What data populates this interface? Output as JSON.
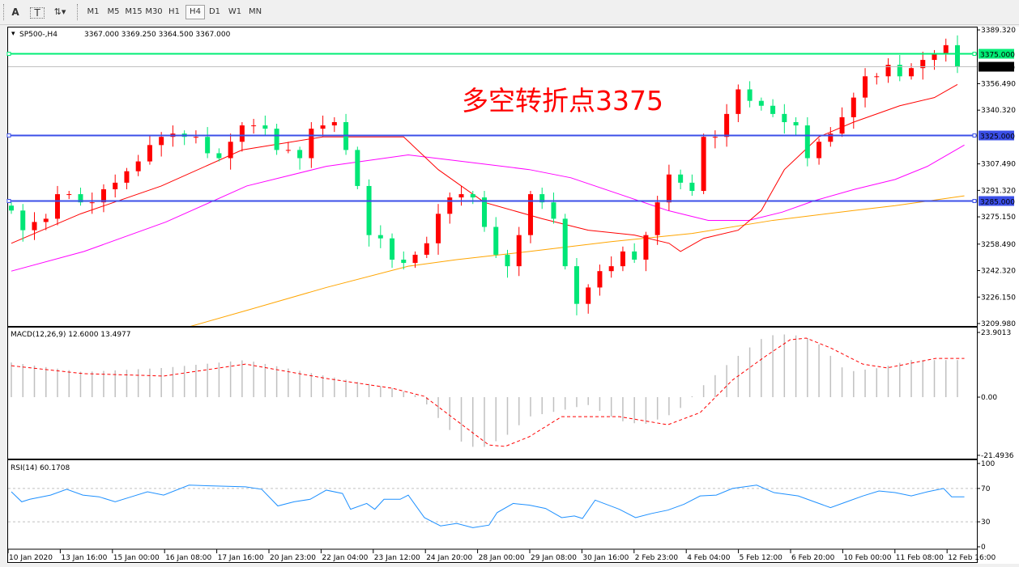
{
  "toolbar": {
    "icons": [
      "text-a-icon",
      "text-label-icon",
      "arrows-icon"
    ],
    "timeframes": [
      "M1",
      "M5",
      "M15",
      "M30",
      "H1",
      "H4",
      "D1",
      "W1",
      "MN"
    ],
    "active_timeframe": "H4"
  },
  "chart_header": {
    "symbol": "SP500-,H4",
    "ohlc": "3367.000 3369.250 3364.500 3367.000"
  },
  "annotation": {
    "text": "多空转折点3375",
    "color": "#ff0000"
  },
  "colors": {
    "bull": "#ff0000",
    "bear": "#00e676",
    "ma_fast": "#ff0000",
    "ma_mid": "#ff00ff",
    "ma_slow": "#ffa500",
    "level_green": "#00ee76",
    "level_blue": "#3b4fe8",
    "rsi": "#1e90ff",
    "macd_hist": "#c0c0c0",
    "macd_signal": "#ff0000"
  },
  "chart_data": [
    {
      "type": "candlestick",
      "title": "SP500-,H4",
      "ylim": [
        3209.98,
        3389.32
      ],
      "y_ticks": [
        "3389.320",
        "3356.490",
        "3340.320",
        "3307.490",
        "3291.320",
        "3275.150",
        "3258.490",
        "3242.320",
        "3226.150",
        "3209.980"
      ],
      "closes": [
        3279,
        3267,
        3272,
        3274,
        3289,
        3289,
        3284,
        3284,
        3292,
        3296,
        3303,
        3309,
        3319,
        3324,
        3326,
        3324,
        3324,
        3314,
        3311,
        3321,
        3331,
        3331,
        3329,
        3316,
        3316,
        3311,
        3329,
        3331,
        3333,
        3316,
        3294,
        3264,
        3262,
        3249,
        3247,
        3252,
        3259,
        3277,
        3287,
        3289,
        3287,
        3269,
        3252,
        3245,
        3264,
        3289,
        3284,
        3274,
        3245,
        3222,
        3232,
        3242,
        3245,
        3254,
        3249,
        3264,
        3284,
        3301,
        3296,
        3291,
        3324,
        3324,
        3338,
        3353,
        3346,
        3343,
        3338,
        3333,
        3331,
        3311,
        3321,
        3326,
        3336,
        3348,
        3361,
        3361,
        3368,
        3361,
        3366,
        3371,
        3375,
        3380,
        3367
      ],
      "ma_fast": [
        [
          0,
          3259
        ],
        [
          6,
          3277
        ],
        [
          13,
          3294
        ],
        [
          20,
          3316
        ],
        [
          27,
          3324
        ],
        [
          34,
          3324
        ],
        [
          37,
          3304
        ],
        [
          41,
          3284
        ],
        [
          46,
          3274
        ],
        [
          50,
          3267
        ],
        [
          54,
          3264
        ],
        [
          57,
          3259
        ],
        [
          58,
          3254
        ],
        [
          60,
          3262
        ],
        [
          63,
          3267
        ],
        [
          65,
          3279
        ],
        [
          67,
          3304
        ],
        [
          70,
          3324
        ],
        [
          73,
          3333
        ],
        [
          77,
          3343
        ],
        [
          80,
          3348
        ],
        [
          82,
          3356
        ]
      ],
      "ma_mid": [
        [
          0,
          3242
        ],
        [
          6.3,
          3254
        ],
        [
          13.4,
          3272
        ],
        [
          20.4,
          3294
        ],
        [
          27.3,
          3306
        ],
        [
          34.4,
          3313
        ],
        [
          37.9,
          3310
        ],
        [
          44.9,
          3304
        ],
        [
          48.5,
          3299
        ],
        [
          52.7,
          3289
        ],
        [
          56.9,
          3279
        ],
        [
          60.4,
          3273
        ],
        [
          63.9,
          3273
        ],
        [
          66.8,
          3278
        ],
        [
          69.6,
          3285
        ],
        [
          73.1,
          3292
        ],
        [
          76.6,
          3298
        ],
        [
          79.4,
          3306
        ],
        [
          82.6,
          3319
        ]
      ],
      "ma_slow": [
        [
          15.4,
          3208
        ],
        [
          20.4,
          3218
        ],
        [
          27.3,
          3232
        ],
        [
          34.4,
          3245
        ],
        [
          38.6,
          3249
        ],
        [
          44.9,
          3254
        ],
        [
          52,
          3260
        ],
        [
          59,
          3265
        ],
        [
          66,
          3273
        ],
        [
          73,
          3279
        ],
        [
          76.6,
          3282
        ],
        [
          82.6,
          3288
        ]
      ],
      "levels": [
        {
          "value": 3375,
          "label": "3375.000",
          "color": "#00ee76"
        },
        {
          "value": 3325,
          "label": "3325.000",
          "color": "#3b4fe8"
        },
        {
          "value": 3285,
          "label": "3285.000",
          "color": "#3b4fe8"
        }
      ],
      "current_price": {
        "value": 3367,
        "label": "3367.000"
      }
    },
    {
      "type": "bar+line",
      "title": "MACD(12,26,9) 12.6000 13.4977",
      "ylim": [
        -21.4936,
        23.9013
      ],
      "y_ticks": [
        "23.9013",
        "0.00",
        "-21.4936"
      ],
      "histogram": [
        [
          0,
          12.8
        ],
        [
          6.2,
          9.3
        ],
        [
          13.2,
          10.8
        ],
        [
          20.3,
          13.7
        ],
        [
          27.3,
          7.8
        ],
        [
          33,
          3.3
        ],
        [
          35.4,
          0.3
        ],
        [
          37.2,
          -8.7
        ],
        [
          39.3,
          -17.7
        ],
        [
          40.7,
          -19
        ],
        [
          42.8,
          -14.6
        ],
        [
          44.9,
          -7.2
        ],
        [
          48.5,
          -4.2
        ],
        [
          49.9,
          -2.7
        ],
        [
          52.7,
          -8.7
        ],
        [
          54.8,
          -10.2
        ],
        [
          57.6,
          -5.7
        ],
        [
          59.7,
          3.3
        ],
        [
          62.5,
          13.7
        ],
        [
          65.4,
          22.7
        ],
        [
          67.5,
          23.3
        ],
        [
          69.6,
          21.2
        ],
        [
          72.4,
          9.3
        ],
        [
          75.2,
          10.8
        ],
        [
          78,
          13.7
        ],
        [
          82.6,
          13.7
        ]
      ],
      "signal": [
        [
          0,
          11.6
        ],
        [
          6.2,
          8.7
        ],
        [
          13.2,
          7.8
        ],
        [
          20.3,
          12.2
        ],
        [
          27.3,
          6.9
        ],
        [
          33,
          3.3
        ],
        [
          35.8,
          0.3
        ],
        [
          38.6,
          -8.7
        ],
        [
          41.4,
          -17.7
        ],
        [
          42.8,
          -18.2
        ],
        [
          44.9,
          -14.6
        ],
        [
          47.7,
          -7.2
        ],
        [
          52.7,
          -7.2
        ],
        [
          56.9,
          -10.2
        ],
        [
          59.7,
          -5.7
        ],
        [
          62.5,
          6.3
        ],
        [
          65.4,
          15.2
        ],
        [
          67.5,
          21.2
        ],
        [
          68.9,
          21.8
        ],
        [
          71,
          18.2
        ],
        [
          73.8,
          12.2
        ],
        [
          75.9,
          10.8
        ],
        [
          80.1,
          14.3
        ],
        [
          82.6,
          14.3
        ]
      ]
    },
    {
      "type": "line",
      "title": "RSI(14) 60.1708",
      "ylim": [
        0,
        100
      ],
      "y_ticks": [
        "100",
        "70",
        "30",
        "0"
      ],
      "levels": [
        70,
        30
      ],
      "values": [
        [
          0,
          66
        ],
        [
          0.9,
          54
        ],
        [
          1.6,
          57
        ],
        [
          3.4,
          62
        ],
        [
          4.8,
          69
        ],
        [
          6.2,
          62
        ],
        [
          7.6,
          60
        ],
        [
          9,
          54
        ],
        [
          10.4,
          60
        ],
        [
          11.8,
          66
        ],
        [
          13.2,
          62
        ],
        [
          15.4,
          74
        ],
        [
          17.5,
          73
        ],
        [
          20.3,
          72
        ],
        [
          21.7,
          69
        ],
        [
          23.1,
          49
        ],
        [
          24.5,
          54
        ],
        [
          25.9,
          57
        ],
        [
          27.3,
          68
        ],
        [
          28.7,
          64
        ],
        [
          29.4,
          45
        ],
        [
          30.8,
          52
        ],
        [
          31.5,
          45
        ],
        [
          32.3,
          57
        ],
        [
          33.7,
          57
        ],
        [
          34.4,
          62
        ],
        [
          35.8,
          35
        ],
        [
          37.2,
          25
        ],
        [
          38.6,
          28
        ],
        [
          40,
          23
        ],
        [
          41.4,
          26
        ],
        [
          42.1,
          41
        ],
        [
          43.5,
          52
        ],
        [
          44.9,
          50
        ],
        [
          46.3,
          46
        ],
        [
          47.7,
          35
        ],
        [
          48.8,
          37
        ],
        [
          49.5,
          34
        ],
        [
          50.6,
          56
        ],
        [
          52.7,
          45
        ],
        [
          54.1,
          35
        ],
        [
          55.5,
          40
        ],
        [
          56.9,
          44
        ],
        [
          58.3,
          51
        ],
        [
          59.7,
          61
        ],
        [
          61.1,
          62
        ],
        [
          62.5,
          70
        ],
        [
          64.6,
          74
        ],
        [
          66.1,
          65
        ],
        [
          68.2,
          61
        ],
        [
          69.6,
          54
        ],
        [
          71,
          47
        ],
        [
          72.4,
          54
        ],
        [
          73.8,
          61
        ],
        [
          75.2,
          67
        ],
        [
          76.6,
          65
        ],
        [
          78,
          61
        ],
        [
          79.4,
          66
        ],
        [
          80.8,
          70
        ],
        [
          81.5,
          60
        ],
        [
          82.6,
          60
        ]
      ]
    }
  ],
  "time_axis": [
    "10 Jan 2020",
    "13 Jan 16:00",
    "15 Jan 00:00",
    "16 Jan 08:00",
    "17 Jan 16:00",
    "20 Jan 23:00",
    "22 Jan 04:00",
    "23 Jan 12:00",
    "24 Jan 20:00",
    "28 Jan 00:00",
    "29 Jan 08:00",
    "30 Jan 16:00",
    "2 Feb 23:00",
    "4 Feb 04:00",
    "5 Feb 12:00",
    "6 Feb 20:00",
    "10 Feb 00:00",
    "11 Feb 08:00",
    "12 Feb 16:00"
  ]
}
